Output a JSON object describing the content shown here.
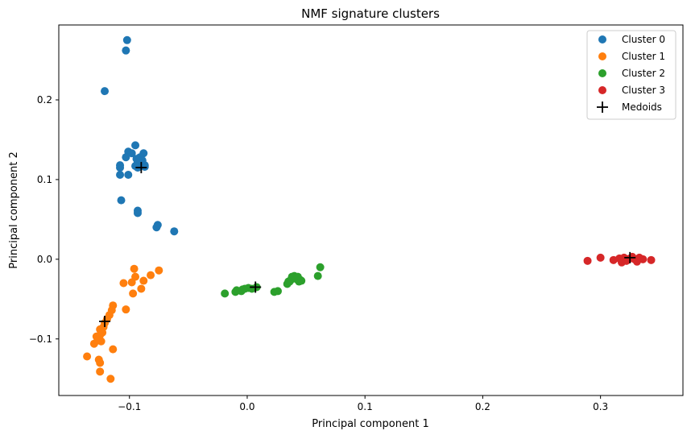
{
  "chart_data": {
    "type": "scatter",
    "title": "NMF signature clusters",
    "xlabel": "Principal component 1",
    "ylabel": "Principal component 2",
    "xlim": [
      -0.16,
      0.37
    ],
    "ylim": [
      -0.171,
      0.294
    ],
    "x_ticks": [
      -0.1,
      0.0,
      0.1,
      0.2,
      0.3
    ],
    "x_tick_labels": [
      "−0.1",
      "0.0",
      "0.1",
      "0.2",
      "0.3"
    ],
    "y_ticks": [
      -0.1,
      0.0,
      0.1,
      0.2
    ],
    "y_tick_labels": [
      "−0.1",
      "0.0",
      "0.1",
      "0.2"
    ],
    "grid": false,
    "legend_position": "top-right",
    "series": [
      {
        "name": "Cluster 0",
        "color": "#1f77b4",
        "marker": "circle",
        "points": [
          [
            -0.102,
            0.275
          ],
          [
            -0.103,
            0.262
          ],
          [
            -0.121,
            0.211
          ],
          [
            -0.095,
            0.143
          ],
          [
            -0.101,
            0.135
          ],
          [
            -0.098,
            0.133
          ],
          [
            -0.088,
            0.133
          ],
          [
            -0.091,
            0.128
          ],
          [
            -0.103,
            0.128
          ],
          [
            -0.094,
            0.126
          ],
          [
            -0.089,
            0.124
          ],
          [
            -0.093,
            0.122
          ],
          [
            -0.09,
            0.12
          ],
          [
            -0.087,
            0.118
          ],
          [
            -0.108,
            0.118
          ],
          [
            -0.095,
            0.117
          ],
          [
            -0.087,
            0.116
          ],
          [
            -0.093,
            0.115
          ],
          [
            -0.108,
            0.115
          ],
          [
            -0.101,
            0.106
          ],
          [
            -0.108,
            0.106
          ],
          [
            -0.107,
            0.074
          ],
          [
            -0.093,
            0.061
          ],
          [
            -0.093,
            0.058
          ],
          [
            -0.076,
            0.043
          ],
          [
            -0.077,
            0.04
          ],
          [
            -0.062,
            0.035
          ]
        ]
      },
      {
        "name": "Cluster 1",
        "color": "#ff7f0e",
        "marker": "circle",
        "points": [
          [
            -0.096,
            -0.012
          ],
          [
            -0.075,
            -0.014
          ],
          [
            -0.082,
            -0.02
          ],
          [
            -0.095,
            -0.022
          ],
          [
            -0.088,
            -0.027
          ],
          [
            -0.098,
            -0.029
          ],
          [
            -0.105,
            -0.03
          ],
          [
            -0.09,
            -0.037
          ],
          [
            -0.097,
            -0.043
          ],
          [
            -0.114,
            -0.058
          ],
          [
            -0.103,
            -0.063
          ],
          [
            -0.115,
            -0.064
          ],
          [
            -0.117,
            -0.07
          ],
          [
            -0.119,
            -0.075
          ],
          [
            -0.121,
            -0.08
          ],
          [
            -0.122,
            -0.085
          ],
          [
            -0.125,
            -0.088
          ],
          [
            -0.123,
            -0.092
          ],
          [
            -0.125,
            -0.095
          ],
          [
            -0.128,
            -0.097
          ],
          [
            -0.124,
            -0.103
          ],
          [
            -0.127,
            -0.102
          ],
          [
            -0.13,
            -0.106
          ],
          [
            -0.114,
            -0.113
          ],
          [
            -0.136,
            -0.122
          ],
          [
            -0.126,
            -0.126
          ],
          [
            -0.125,
            -0.13
          ],
          [
            -0.125,
            -0.141
          ],
          [
            -0.116,
            -0.15
          ]
        ]
      },
      {
        "name": "Cluster 2",
        "color": "#2ca02c",
        "marker": "circle",
        "points": [
          [
            -0.019,
            -0.043
          ],
          [
            -0.01,
            -0.041
          ],
          [
            -0.009,
            -0.039
          ],
          [
            -0.005,
            -0.04
          ],
          [
            -0.004,
            -0.038
          ],
          [
            -0.002,
            -0.037
          ],
          [
            0.001,
            -0.036
          ],
          [
            0.004,
            -0.037
          ],
          [
            0.008,
            -0.035
          ],
          [
            0.023,
            -0.041
          ],
          [
            0.026,
            -0.04
          ],
          [
            0.034,
            -0.031
          ],
          [
            0.035,
            -0.028
          ],
          [
            0.036,
            -0.028
          ],
          [
            0.037,
            -0.026
          ],
          [
            0.038,
            -0.022
          ],
          [
            0.04,
            -0.021
          ],
          [
            0.041,
            -0.024
          ],
          [
            0.042,
            -0.025
          ],
          [
            0.043,
            -0.022
          ],
          [
            0.044,
            -0.028
          ],
          [
            0.045,
            -0.026
          ],
          [
            0.046,
            -0.027
          ],
          [
            0.06,
            -0.021
          ],
          [
            0.062,
            -0.01
          ]
        ]
      },
      {
        "name": "Cluster 3",
        "color": "#d62728",
        "marker": "circle",
        "points": [
          [
            0.289,
            -0.002
          ],
          [
            0.3,
            0.002
          ],
          [
            0.311,
            -0.001
          ],
          [
            0.316,
            0.001
          ],
          [
            0.318,
            -0.004
          ],
          [
            0.32,
            0.002
          ],
          [
            0.322,
            -0.002
          ],
          [
            0.325,
            0.001
          ],
          [
            0.327,
            0.003
          ],
          [
            0.329,
            0.0
          ],
          [
            0.331,
            -0.003
          ],
          [
            0.333,
            0.002
          ],
          [
            0.336,
            0.0
          ],
          [
            0.343,
            -0.001
          ]
        ]
      },
      {
        "name": "Medoids",
        "color": "#000000",
        "marker": "plus",
        "points": [
          [
            -0.09,
            0.115
          ],
          [
            -0.121,
            -0.078
          ],
          [
            0.007,
            -0.035
          ],
          [
            0.325,
            0.002
          ]
        ]
      }
    ]
  }
}
